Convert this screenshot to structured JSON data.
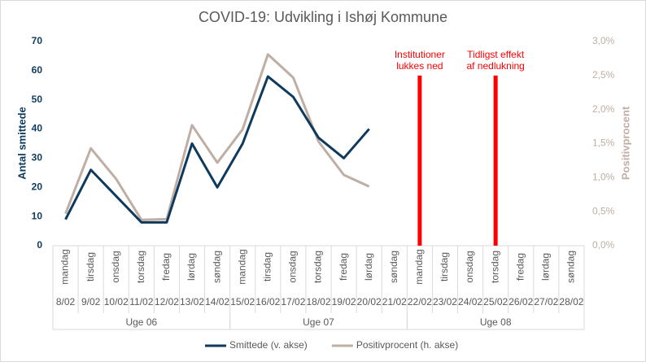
{
  "chart_data": {
    "type": "line",
    "title": "COVID-19: Udvikling i Ishøj Kommune",
    "y_label": "Antal smittede",
    "y2_label": "Positivprocent",
    "categories": [
      "8/02",
      "9/02",
      "10/02",
      "11/02",
      "12/02",
      "13/02",
      "14/02",
      "15/02",
      "16/02",
      "17/02",
      "18/02",
      "19/02",
      "20/02",
      "21/02",
      "22/02",
      "23/02",
      "24/02",
      "25/02",
      "26/02",
      "27/02",
      "28/02"
    ],
    "weekdays": [
      "mandag",
      "tirsdag",
      "onsdag",
      "torsdag",
      "fredag",
      "lørdag",
      "søndag",
      "mandag",
      "tirsdag",
      "onsdag",
      "torsdag",
      "fredag",
      "lørdag",
      "søndag",
      "mandag",
      "tirsdag",
      "onsdag",
      "torsdag",
      "fredag",
      "lørdag",
      "søndag"
    ],
    "weeks": [
      {
        "name": "Uge 06",
        "start": "8/02",
        "end": "14/02"
      },
      {
        "name": "Uge 07",
        "start": "15/02",
        "end": "21/02"
      },
      {
        "name": "Uge 08",
        "start": "22/02",
        "end": "28/02"
      }
    ],
    "series": [
      {
        "name": "Smittede (v. akse)",
        "color": "#0e3a5e",
        "values": [
          9,
          26,
          17,
          8,
          8,
          35,
          20,
          35,
          58,
          51,
          37,
          30,
          40,
          null,
          null,
          null,
          null,
          null,
          null,
          null,
          null
        ]
      },
      {
        "name": "Positivprocent (h. akse)",
        "color": "#bfaea4",
        "axis": "y2",
        "values": [
          0.47,
          1.43,
          0.98,
          0.38,
          0.39,
          1.77,
          1.22,
          1.71,
          2.81,
          2.47,
          1.53,
          1.04,
          0.87,
          null,
          null,
          null,
          null,
          null,
          null,
          null,
          null
        ]
      }
    ],
    "ylim": [
      0,
      70
    ],
    "yticks": [
      0,
      10,
      20,
      30,
      40,
      50,
      60,
      70
    ],
    "y2lim": [
      0,
      3
    ],
    "y2ticks": [
      {
        "value": 0,
        "label": "0,0%"
      },
      {
        "value": 0.5,
        "label": "0,5%"
      },
      {
        "value": 1,
        "label": "1,0%"
      },
      {
        "value": 1.5,
        "label": "1,5%"
      },
      {
        "value": 2,
        "label": "2,0%"
      },
      {
        "value": 2.5,
        "label": "2,5%"
      },
      {
        "value": 3,
        "label": "3,0%"
      }
    ],
    "annotations": [
      {
        "x": "22/02",
        "value": 2.5,
        "axis": "y2",
        "color": "#ff0000",
        "lines": [
          "Institutioner",
          "lukkes ned"
        ]
      },
      {
        "x": "25/02",
        "value": 2.5,
        "axis": "y2",
        "color": "#ff0000",
        "lines": [
          "Tidligst effekt",
          "af nedlukning"
        ]
      }
    ]
  }
}
